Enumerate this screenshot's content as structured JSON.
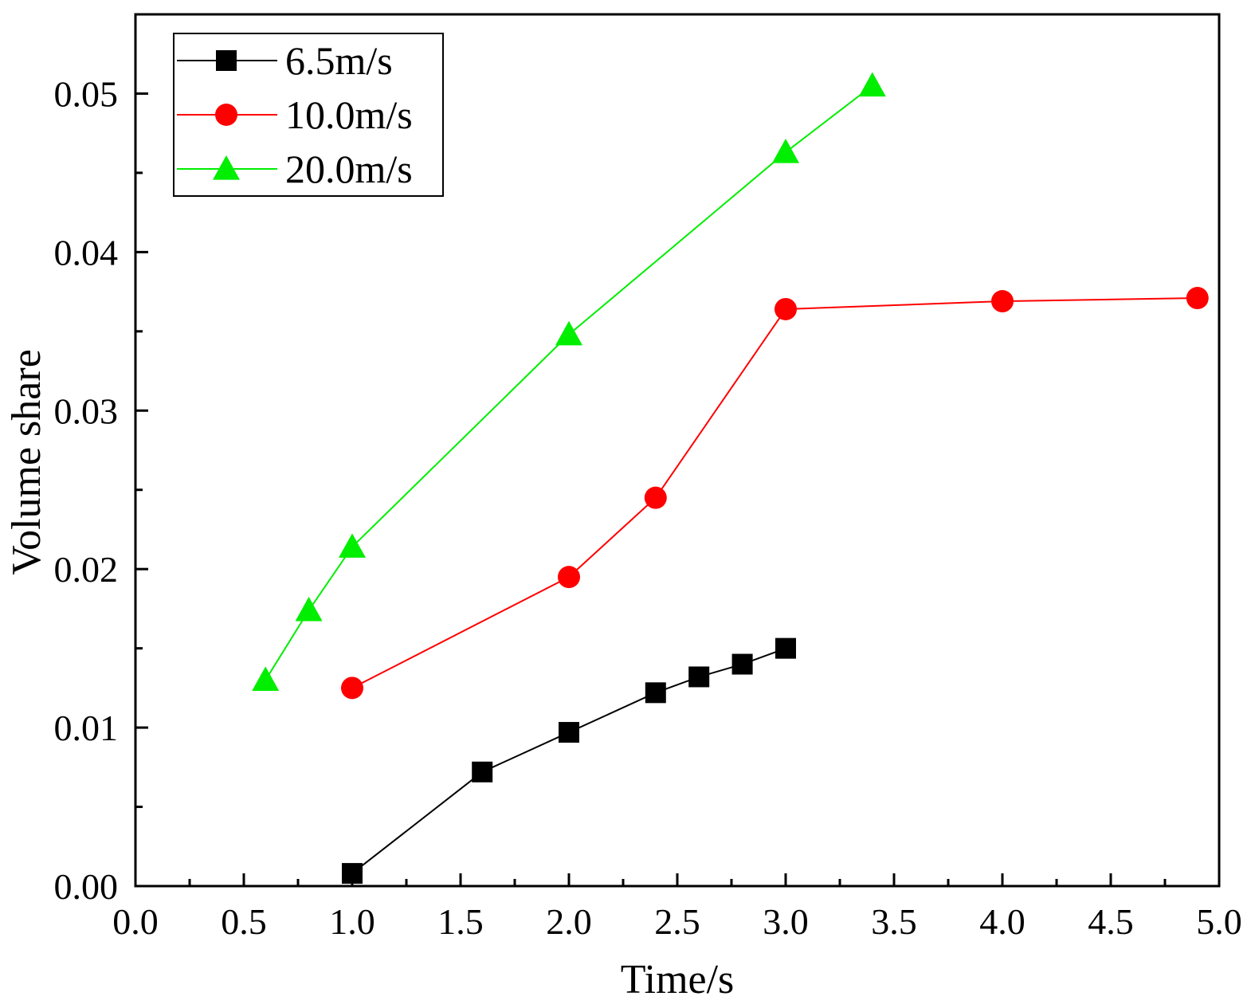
{
  "chart_data": {
    "type": "line",
    "title": "",
    "xlabel": "Time/s",
    "ylabel": "Volume share",
    "xlim": [
      0.0,
      5.0
    ],
    "ylim": [
      0.0,
      0.055
    ],
    "x_ticks": [
      "0.0",
      "0.5",
      "1.0",
      "1.5",
      "2.0",
      "2.5",
      "3.0",
      "3.5",
      "4.0",
      "4.5",
      "5.0"
    ],
    "y_ticks": [
      "0.00",
      "0.01",
      "0.02",
      "0.03",
      "0.04",
      "0.05"
    ],
    "grid": false,
    "legend_position": "top-left",
    "series": [
      {
        "name": "6.5m/s",
        "color": "#000000",
        "marker": "square",
        "x": [
          1.0,
          1.6,
          2.0,
          2.4,
          2.6,
          2.8,
          3.0
        ],
        "y": [
          0.0008,
          0.0072,
          0.0097,
          0.0122,
          0.0132,
          0.014,
          0.015
        ]
      },
      {
        "name": "10.0m/s",
        "color": "#ff0000",
        "marker": "circle",
        "x": [
          1.0,
          2.0,
          2.4,
          3.0,
          4.0,
          4.9
        ],
        "y": [
          0.0125,
          0.0195,
          0.0245,
          0.0364,
          0.0369,
          0.0371
        ]
      },
      {
        "name": "20.0m/s",
        "color": "#00ee00",
        "marker": "triangle",
        "x": [
          0.6,
          0.8,
          1.0,
          2.0,
          3.0,
          3.4
        ],
        "y": [
          0.013,
          0.0174,
          0.0214,
          0.0348,
          0.0463,
          0.0505
        ]
      }
    ]
  }
}
